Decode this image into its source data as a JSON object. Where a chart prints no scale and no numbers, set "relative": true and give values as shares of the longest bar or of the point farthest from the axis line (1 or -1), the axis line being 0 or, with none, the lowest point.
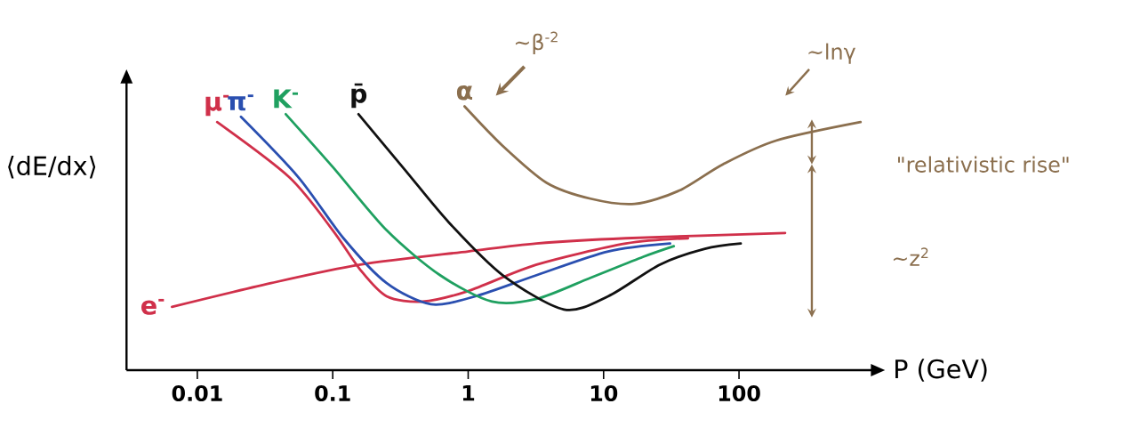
{
  "chart_data": {
    "type": "line",
    "relative": true,
    "log": "x",
    "xlim": [
      0.003,
      1000
    ],
    "xticks": [
      0.01,
      0.1,
      1,
      10,
      100
    ],
    "xlabel": "P (GeV)",
    "ylabel": "⟨dE/dx⟩",
    "annotations": [
      "~β$^{-2}$",
      "~lnγ",
      "\"relativistic rise\"",
      "~z$^{2}$"
    ],
    "series": [
      {
        "name": "e$^{-}$",
        "color": "#d0304a",
        "x": [
          0.0065,
          0.035,
          0.16,
          1,
          3.2,
          14.6,
          219
        ],
        "values": [
          0.24,
          0.33,
          0.4,
          0.45,
          0.48,
          0.5,
          0.52
        ]
      },
      {
        "name": "μ$^{-}$",
        "color": "#d0304a",
        "x": [
          0.014,
          0.048,
          0.1,
          0.16,
          0.25,
          0.46,
          1.0,
          3.2,
          14.6,
          42
        ],
        "values": [
          0.94,
          0.73,
          0.53,
          0.38,
          0.28,
          0.26,
          0.3,
          0.4,
          0.48,
          0.5
        ]
      },
      {
        "name": "π$^{-}$",
        "color": "#2a4fb0",
        "x": [
          0.021,
          0.056,
          0.12,
          0.25,
          0.53,
          1.13,
          3.2,
          10.8,
          31
        ],
        "values": [
          0.96,
          0.73,
          0.5,
          0.33,
          0.25,
          0.28,
          0.36,
          0.45,
          0.48
        ]
      },
      {
        "name": "K$^{-}$",
        "color": "#1fa060",
        "x": [
          0.045,
          0.1,
          0.25,
          0.62,
          1.5,
          3.2,
          8.0,
          19.7,
          33
        ],
        "values": [
          0.97,
          0.77,
          0.53,
          0.36,
          0.26,
          0.27,
          0.35,
          0.43,
          0.47
        ]
      },
      {
        "name": "p̄",
        "color": "#111111",
        "x": [
          0.155,
          0.34,
          0.72,
          1.8,
          5.1,
          10.8,
          26,
          56,
          103
        ],
        "values": [
          0.97,
          0.76,
          0.56,
          0.36,
          0.23,
          0.28,
          0.4,
          0.46,
          0.48
        ]
      },
      {
        "name": "α",
        "color": "#8b6f4e",
        "x": [
          0.94,
          1.8,
          3.8,
          8.0,
          17,
          36,
          76,
          188,
          790
        ],
        "values": [
          1.0,
          0.85,
          0.71,
          0.65,
          0.63,
          0.68,
          0.78,
          0.87,
          0.94
        ]
      }
    ]
  }
}
